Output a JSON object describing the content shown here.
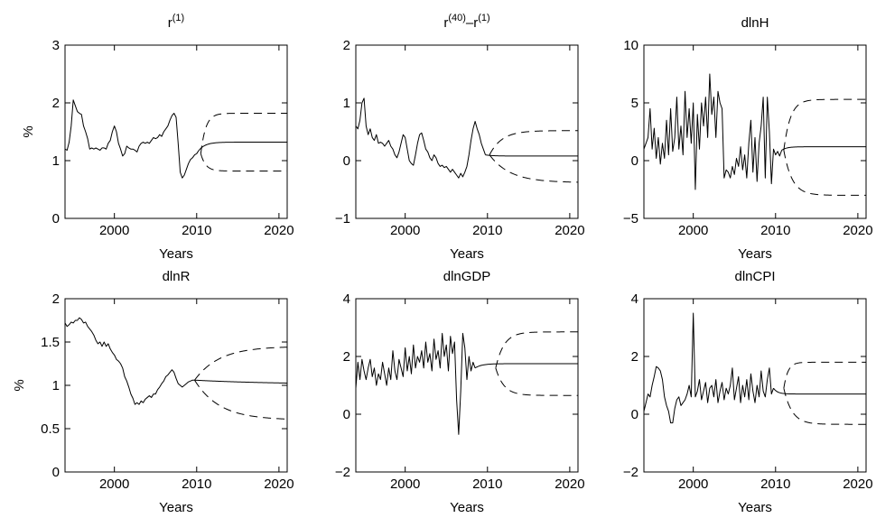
{
  "chart_data": [
    {
      "type": "line",
      "title_base": "r",
      "title_sup": "(1)",
      "xlabel": "Years",
      "ylabel": "%",
      "xlim": [
        1994,
        2021
      ],
      "ylim": [
        0,
        3
      ],
      "yticks": [
        "0",
        "1",
        "2",
        "3"
      ],
      "xticks": [
        "2000",
        "2010",
        "2020"
      ],
      "x_start": 1994,
      "step": 0.25,
      "history": [
        1.2,
        1.18,
        1.32,
        1.6,
        2.05,
        1.95,
        1.85,
        1.82,
        1.8,
        1.6,
        1.5,
        1.38,
        1.2,
        1.22,
        1.2,
        1.22,
        1.2,
        1.18,
        1.22,
        1.22,
        1.2,
        1.3,
        1.35,
        1.5,
        1.6,
        1.5,
        1.3,
        1.2,
        1.08,
        1.12,
        1.25,
        1.22,
        1.2,
        1.2,
        1.18,
        1.15,
        1.25,
        1.3,
        1.32,
        1.3,
        1.32,
        1.3,
        1.35,
        1.4,
        1.38,
        1.4,
        1.45,
        1.42,
        1.5,
        1.55,
        1.6,
        1.7,
        1.78,
        1.82,
        1.75,
        1.3,
        0.8,
        0.7,
        0.75,
        0.85,
        0.95,
        1.02,
        1.05,
        1.1,
        1.12
      ],
      "forecast_start": 2010.5,
      "center": {
        "end": 1.32,
        "tau": 0.8
      },
      "upper": {
        "end": 1.82,
        "tau": 0.6
      },
      "lower": {
        "end": 0.82,
        "tau": 0.6
      }
    },
    {
      "type": "line",
      "title_base": "r",
      "title_sup": "(40)",
      "title_mid": "–r",
      "title_sup2": "(1)",
      "xlabel": "Years",
      "ylabel": "",
      "xlim": [
        1994,
        2021
      ],
      "ylim": [
        -1,
        2
      ],
      "yticks": [
        "−1",
        "0",
        "1",
        "2"
      ],
      "xticks": [
        "2000",
        "2010",
        "2020"
      ],
      "x_start": 1994,
      "step": 0.25,
      "history": [
        0.6,
        0.55,
        0.7,
        1.0,
        1.08,
        0.6,
        0.45,
        0.55,
        0.4,
        0.35,
        0.45,
        0.3,
        0.32,
        0.3,
        0.25,
        0.3,
        0.35,
        0.25,
        0.2,
        0.1,
        0.05,
        0.15,
        0.3,
        0.45,
        0.4,
        0.2,
        0.0,
        -0.05,
        -0.08,
        0.1,
        0.3,
        0.45,
        0.48,
        0.35,
        0.2,
        0.15,
        0.05,
        0.0,
        0.1,
        0.05,
        -0.05,
        -0.1,
        -0.08,
        -0.12,
        -0.1,
        -0.15,
        -0.2,
        -0.15,
        -0.2,
        -0.25,
        -0.3,
        -0.22,
        -0.28,
        -0.2,
        -0.1,
        0.1,
        0.35,
        0.55,
        0.68,
        0.55,
        0.45,
        0.3,
        0.2,
        0.1
      ],
      "forecast_start": 2010.25,
      "center": {
        "end": 0.08,
        "tau": 0.8
      },
      "upper": {
        "end": 0.52,
        "tau": 1.5
      },
      "lower": {
        "end": -0.38,
        "tau": 2.5
      }
    },
    {
      "type": "line",
      "title_base": "dlnH",
      "xlabel": "Years",
      "ylabel": "",
      "xlim": [
        1994,
        2021
      ],
      "ylim": [
        -5,
        10
      ],
      "yticks": [
        "−5",
        "0",
        "5",
        "10"
      ],
      "xticks": [
        "2000",
        "2010",
        "2020"
      ],
      "x_start": 1994,
      "step": 0.25,
      "history": [
        1.0,
        1.5,
        2.0,
        4.5,
        1.0,
        2.8,
        0.2,
        2.0,
        -0.3,
        1.5,
        0.2,
        3.5,
        0.5,
        4.5,
        0.8,
        2.0,
        5.5,
        1.0,
        3.0,
        0.5,
        6.0,
        2.0,
        4.5,
        1.5,
        5.0,
        -2.5,
        4.0,
        1.0,
        5.0,
        3.0,
        5.5,
        2.0,
        7.5,
        4.0,
        5.5,
        2.0,
        6.0,
        5.0,
        4.5,
        -1.5,
        -0.8,
        -1.0,
        -1.5,
        -0.5,
        -1.2,
        0.2,
        -0.5,
        1.2,
        -0.8,
        0.5,
        -1.5,
        1.5,
        3.5,
        -1.0,
        2.0,
        -1.8,
        1.5,
        3.0,
        5.5,
        -1.5,
        5.5,
        2.5,
        -2.0,
        1.0,
        0.5,
        0.8,
        0.4,
        0.9
      ],
      "forecast_start": 2011,
      "center": {
        "end": 1.2,
        "tau": 0.6
      },
      "upper": {
        "end": 5.3,
        "tau": 0.8
      },
      "lower": {
        "end": -3.0,
        "tau": 1.0
      }
    },
    {
      "type": "line",
      "title_base": "dlnR",
      "xlabel": "Years",
      "ylabel": "%",
      "xlim": [
        1994,
        2021
      ],
      "ylim": [
        0,
        2
      ],
      "yticks": [
        "0",
        "0.5",
        "1",
        "1.5",
        "2"
      ],
      "xticks": [
        "2000",
        "2010",
        "2020"
      ],
      "x_start": 1994,
      "step": 0.25,
      "history": [
        1.72,
        1.68,
        1.7,
        1.73,
        1.72,
        1.75,
        1.75,
        1.78,
        1.76,
        1.72,
        1.73,
        1.68,
        1.65,
        1.62,
        1.58,
        1.52,
        1.48,
        1.5,
        1.45,
        1.5,
        1.45,
        1.48,
        1.42,
        1.38,
        1.35,
        1.3,
        1.28,
        1.25,
        1.2,
        1.1,
        1.05,
        0.98,
        0.9,
        0.85,
        0.78,
        0.8,
        0.78,
        0.82,
        0.8,
        0.84,
        0.86,
        0.88,
        0.86,
        0.9,
        0.9,
        0.95,
        0.98,
        1.02,
        1.05,
        1.1,
        1.12,
        1.15,
        1.18,
        1.15,
        1.08,
        1.02,
        1.0,
        0.98,
        1.0,
        1.02,
        1.04,
        1.05,
        1.06,
        1.06
      ],
      "forecast_start": 2009.75,
      "center": {
        "end": 1.01,
        "tau": 10
      },
      "upper": {
        "end": 1.45,
        "tau": 3.0
      },
      "lower": {
        "end": 0.6,
        "tau": 3.0
      }
    },
    {
      "type": "line",
      "title_base": "dlnGDP",
      "xlabel": "Years",
      "ylabel": "",
      "xlim": [
        1994,
        2021
      ],
      "ylim": [
        -2,
        4
      ],
      "yticks": [
        "−2",
        "0",
        "2",
        "4"
      ],
      "xticks": [
        "2000",
        "2010",
        "2020"
      ],
      "x_start": 1994,
      "step": 0.25,
      "history": [
        0.9,
        1.8,
        1.2,
        1.9,
        1.5,
        1.2,
        1.6,
        1.9,
        1.3,
        1.6,
        1.0,
        1.4,
        1.2,
        1.8,
        1.4,
        1.0,
        1.6,
        1.2,
        2.2,
        1.5,
        1.2,
        1.9,
        1.6,
        1.3,
        2.3,
        1.5,
        2.0,
        1.4,
        2.4,
        1.6,
        2.0,
        1.8,
        2.2,
        1.6,
        2.5,
        1.8,
        2.1,
        1.5,
        2.6,
        1.9,
        2.2,
        1.6,
        2.8,
        2.0,
        2.4,
        1.5,
        2.7,
        2.1,
        2.5,
        0.5,
        -0.7,
        0.8,
        2.8,
        2.3,
        1.2,
        2.0,
        1.5,
        1.8,
        1.6
      ],
      "forecast_start": 2011,
      "center": {
        "end": 1.75,
        "tau": 0.8
      },
      "upper": {
        "end": 2.85,
        "tau": 1.0
      },
      "lower": {
        "end": 0.65,
        "tau": 1.0
      }
    },
    {
      "type": "line",
      "title_base": "dlnCPI",
      "xlabel": "Years",
      "ylabel": "",
      "xlim": [
        1994,
        2021
      ],
      "ylim": [
        -2,
        4
      ],
      "yticks": [
        "−2",
        "0",
        "2",
        "4"
      ],
      "xticks": [
        "2000",
        "2010",
        "2020"
      ],
      "x_start": 1994,
      "step": 0.25,
      "history": [
        0.1,
        0.4,
        0.7,
        0.6,
        1.0,
        1.3,
        1.65,
        1.6,
        1.5,
        1.2,
        0.6,
        0.3,
        0.1,
        -0.3,
        -0.3,
        0.2,
        0.5,
        0.6,
        0.3,
        0.4,
        0.5,
        0.7,
        1.0,
        0.6,
        3.5,
        0.6,
        0.8,
        1.2,
        0.5,
        0.8,
        1.1,
        0.4,
        0.9,
        1.0,
        0.6,
        1.2,
        0.4,
        0.8,
        1.1,
        0.5,
        0.9,
        0.7,
        1.0,
        1.6,
        0.5,
        0.9,
        1.3,
        0.4,
        1.0,
        0.6,
        1.2,
        0.5,
        1.4,
        0.8,
        0.4,
        1.0,
        0.6,
        1.5,
        0.8,
        0.6,
        1.2,
        1.6,
        0.7,
        0.9
      ],
      "forecast_start": 2011,
      "center": {
        "end": 0.7,
        "tau": 0.5
      },
      "upper": {
        "end": 1.8,
        "tau": 0.5
      },
      "lower": {
        "end": -0.35,
        "tau": 1.0
      }
    }
  ]
}
